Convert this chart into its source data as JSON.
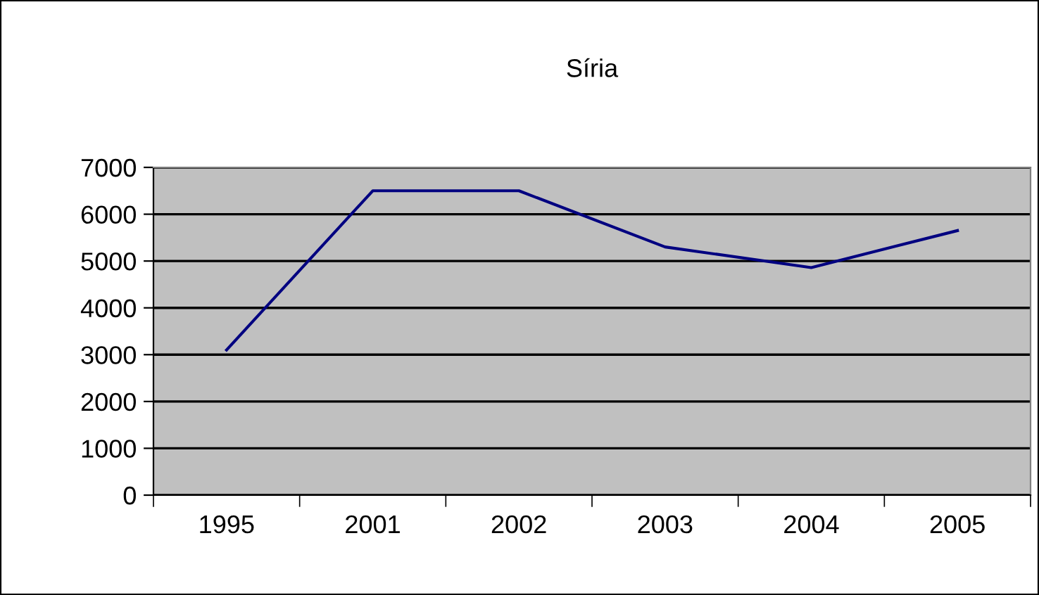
{
  "chart_data": {
    "type": "line",
    "title": "Síria",
    "categories": [
      "1995",
      "2001",
      "2002",
      "2003",
      "2004",
      "2005"
    ],
    "series": [
      {
        "color": "#000080",
        "values": [
          3100,
          6500,
          6500,
          5300,
          4860,
          5650
        ]
      }
    ],
    "ylim": [
      0,
      7000
    ],
    "yticks": [
      0,
      1000,
      2000,
      3000,
      4000,
      5000,
      6000,
      7000
    ],
    "grid": "y",
    "marker": "none",
    "line_style": "solid"
  }
}
